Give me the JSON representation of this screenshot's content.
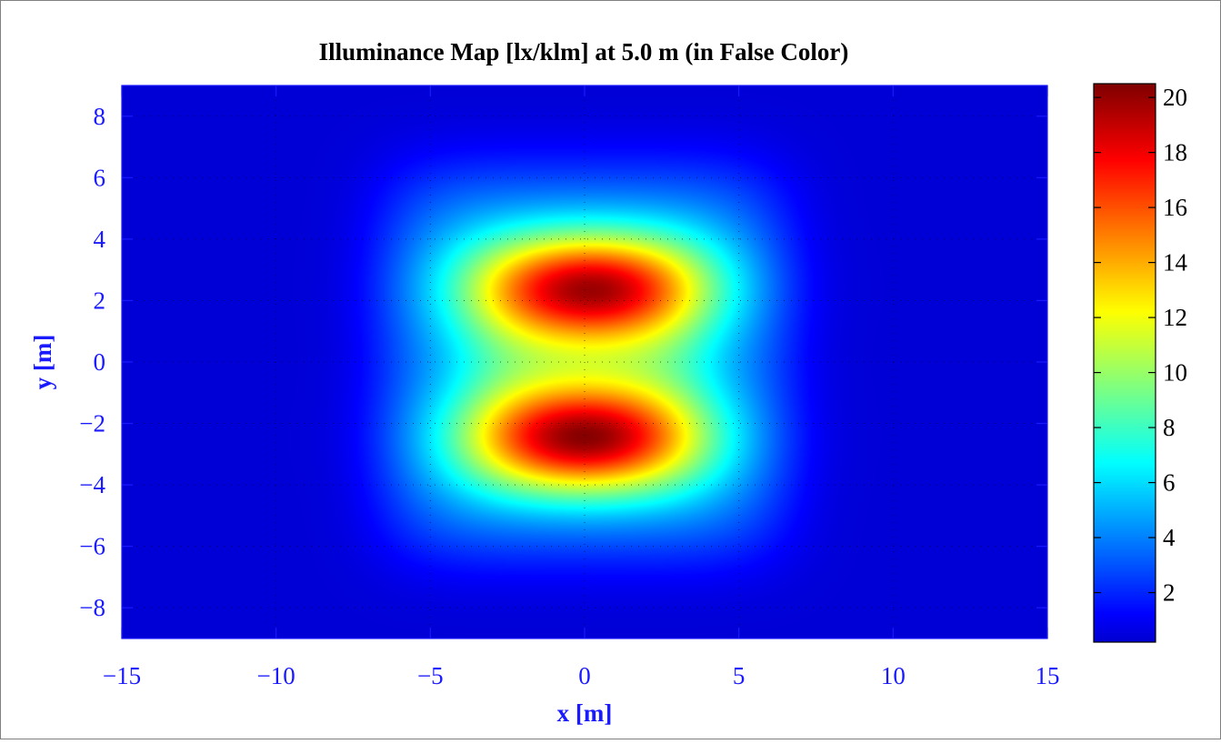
{
  "chart_data": {
    "type": "heatmap",
    "title": "Illuminance Map [lx/klm] at 5.0 m (in False Color)",
    "xlabel": "x [m]",
    "ylabel": "y [m]",
    "xlim": [
      -15,
      15
    ],
    "ylim": [
      -9,
      9
    ],
    "xticks": [
      -15,
      -10,
      -5,
      0,
      5,
      10,
      15
    ],
    "xtick_labels": [
      "−15",
      "−10",
      "−5",
      "0",
      "5",
      "10",
      "15"
    ],
    "yticks": [
      -8,
      -6,
      -4,
      -2,
      0,
      2,
      4,
      6,
      8
    ],
    "ytick_labels": [
      "−8",
      "−6",
      "−4",
      "−2",
      "0",
      "2",
      "4",
      "6",
      "8"
    ],
    "grid": true,
    "colormap": "jet",
    "colorbar": {
      "range": [
        0.2,
        20.5
      ],
      "ticks": [
        2,
        4,
        6,
        8,
        10,
        12,
        14,
        16,
        18,
        20
      ],
      "tick_labels": [
        "2",
        "4",
        "6",
        "8",
        "10",
        "12",
        "14",
        "16",
        "18",
        "20"
      ]
    },
    "peaks": [
      {
        "x": 0.2,
        "y": 2.4,
        "value": 20
      },
      {
        "x": 0.0,
        "y": -2.5,
        "value": 20.5
      }
    ],
    "background_value": 0.3,
    "colors": {
      "axis_text": "#1a1aff",
      "title_text": "#000000"
    }
  }
}
